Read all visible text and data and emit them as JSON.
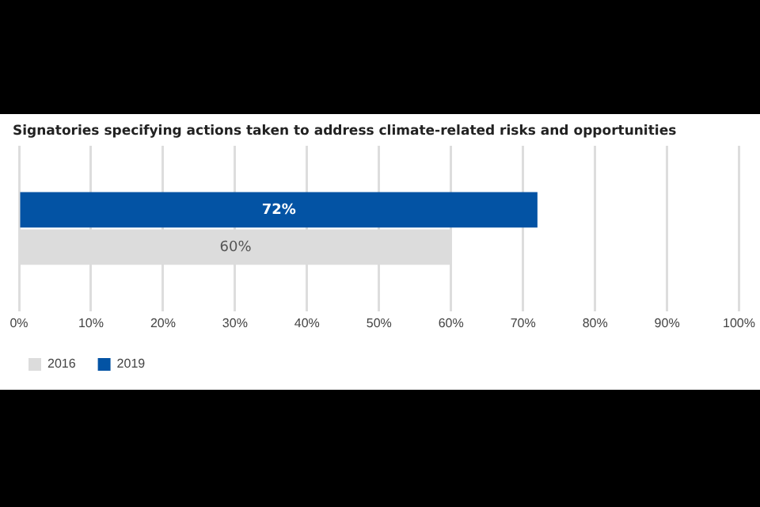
{
  "chart_data": {
    "type": "bar",
    "orientation": "horizontal",
    "title": "Signatories specifying actions taken to address climate-related risks and opportunities",
    "categories": [
      null
    ],
    "series": [
      {
        "name": "2019",
        "color": "#0353a4",
        "values": [
          72
        ],
        "value_labels": [
          "72%"
        ]
      },
      {
        "name": "2016",
        "color": "#dcdcdc",
        "values": [
          60
        ],
        "value_labels": [
          "60%"
        ]
      }
    ],
    "xlim": [
      0,
      100
    ],
    "xticks": [
      {
        "value": 0,
        "label": "0%"
      },
      {
        "value": 10,
        "label": "10%"
      },
      {
        "value": 20,
        "label": "20%"
      },
      {
        "value": 30,
        "label": "30%"
      },
      {
        "value": 40,
        "label": "40%"
      },
      {
        "value": 50,
        "label": "50%"
      },
      {
        "value": 60,
        "label": "60%"
      },
      {
        "value": 70,
        "label": "70%"
      },
      {
        "value": 80,
        "label": "80%"
      },
      {
        "value": 90,
        "label": "90%"
      },
      {
        "value": 100,
        "label": "100%"
      }
    ],
    "grid": "x",
    "legend": "bottom left"
  }
}
